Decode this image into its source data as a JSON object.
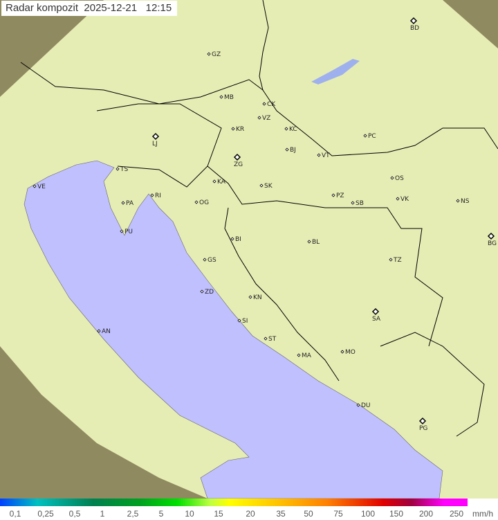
{
  "header": {
    "title": "Radar kompozit",
    "date": "2025-12-21",
    "time": "12:15"
  },
  "legend": {
    "labels": [
      "0,1",
      "0,25",
      "0,5",
      "1",
      "2,5",
      "5",
      "10",
      "15",
      "20",
      "35",
      "50",
      "75",
      "100",
      "150",
      "200",
      "250"
    ],
    "unit": "mm/h"
  },
  "colors": {
    "sea": "#c0c0ff",
    "land": "#e6edb4",
    "out_of_range": "#8f8a60",
    "border": "#000000"
  },
  "cities": [
    {
      "code": "GZ"
    },
    {
      "code": "BD",
      "major": true
    },
    {
      "code": "MB"
    },
    {
      "code": "CK"
    },
    {
      "code": "VZ"
    },
    {
      "code": "KR"
    },
    {
      "code": "KC"
    },
    {
      "code": "PC"
    },
    {
      "code": "LJ",
      "major": true
    },
    {
      "code": "TS"
    },
    {
      "code": "ZG",
      "major": true
    },
    {
      "code": "BJ"
    },
    {
      "code": "VT"
    },
    {
      "code": "VE"
    },
    {
      "code": "KA"
    },
    {
      "code": "SK"
    },
    {
      "code": "OS"
    },
    {
      "code": "RI"
    },
    {
      "code": "PA"
    },
    {
      "code": "OG"
    },
    {
      "code": "PZ"
    },
    {
      "code": "SB"
    },
    {
      "code": "VK"
    },
    {
      "code": "NS"
    },
    {
      "code": "PU"
    },
    {
      "code": "BG",
      "major": true
    },
    {
      "code": "BI"
    },
    {
      "code": "BL"
    },
    {
      "code": "TZ"
    },
    {
      "code": "GS"
    },
    {
      "code": "ZD"
    },
    {
      "code": "KN"
    },
    {
      "code": "SA",
      "major": true
    },
    {
      "code": "SI"
    },
    {
      "code": "AN"
    },
    {
      "code": "ST"
    },
    {
      "code": "MO"
    },
    {
      "code": "MA"
    },
    {
      "code": "DU"
    },
    {
      "code": "PG",
      "major": true
    }
  ]
}
